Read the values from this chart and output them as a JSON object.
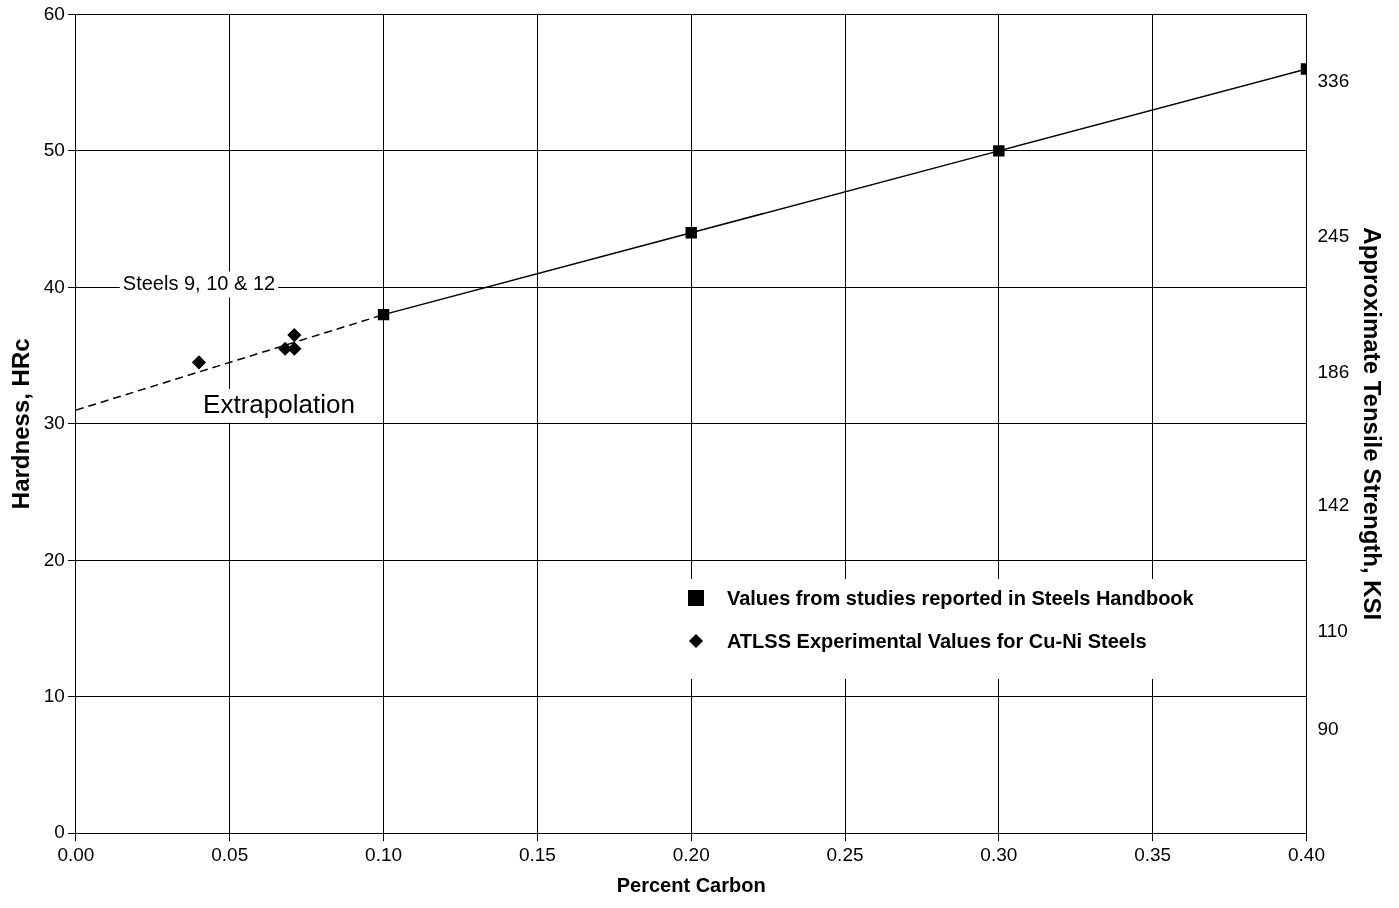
{
  "chart_data": {
    "type": "scatter",
    "xlabel": "Percent Carbon",
    "ylabel": "Hardness, HRc",
    "y2label": "Approximate Tensile Strength, KSI",
    "x": [
      0.1,
      0.2,
      0.3,
      0.4
    ],
    "series": [
      {
        "name": "Values from studies reported in Steels Handbook",
        "type": "line",
        "color": "#000000",
        "marker": "square",
        "line_style": "solid",
        "values": [
          38,
          44,
          50,
          56
        ]
      },
      {
        "name": "ATLSS Experimental Values for Cu-Ni Steels",
        "type": "scatter",
        "color": "#000000",
        "marker": "diamond",
        "x": [
          0.04,
          0.068,
          0.071,
          0.071
        ],
        "values": [
          34.5,
          35.5,
          35.5,
          36.5
        ]
      },
      {
        "type": "line",
        "color": "#000000",
        "marker": "none",
        "line_style": "dashed",
        "x": [
          0,
          0.1
        ],
        "values": [
          31,
          38
        ]
      }
    ],
    "xlim": [
      0,
      0.4
    ],
    "xticks": [
      {
        "value": 0,
        "label": "0.00"
      },
      {
        "value": 0.05,
        "label": "0.05"
      },
      {
        "value": 0.1,
        "label": "0.10"
      },
      {
        "value": 0.15,
        "label": "0.15"
      },
      {
        "value": 0.2,
        "label": "0.20"
      },
      {
        "value": 0.25,
        "label": "0.25"
      },
      {
        "value": 0.3,
        "label": "0.30"
      },
      {
        "value": 0.35,
        "label": "0.35"
      },
      {
        "value": 0.4,
        "label": "0.40"
      }
    ],
    "ylim": [
      0,
      60
    ],
    "yticks": [
      0,
      10,
      20,
      30,
      40,
      50,
      60
    ],
    "y2lim": [
      73,
      385
    ],
    "y2ticks": [
      336,
      245,
      186,
      142,
      110,
      90
    ],
    "annotations": [
      "Steels 9, 10 & 12",
      "Extrapolation"
    ],
    "grid": true,
    "legend": "bottom right",
    "log": "y2"
  }
}
